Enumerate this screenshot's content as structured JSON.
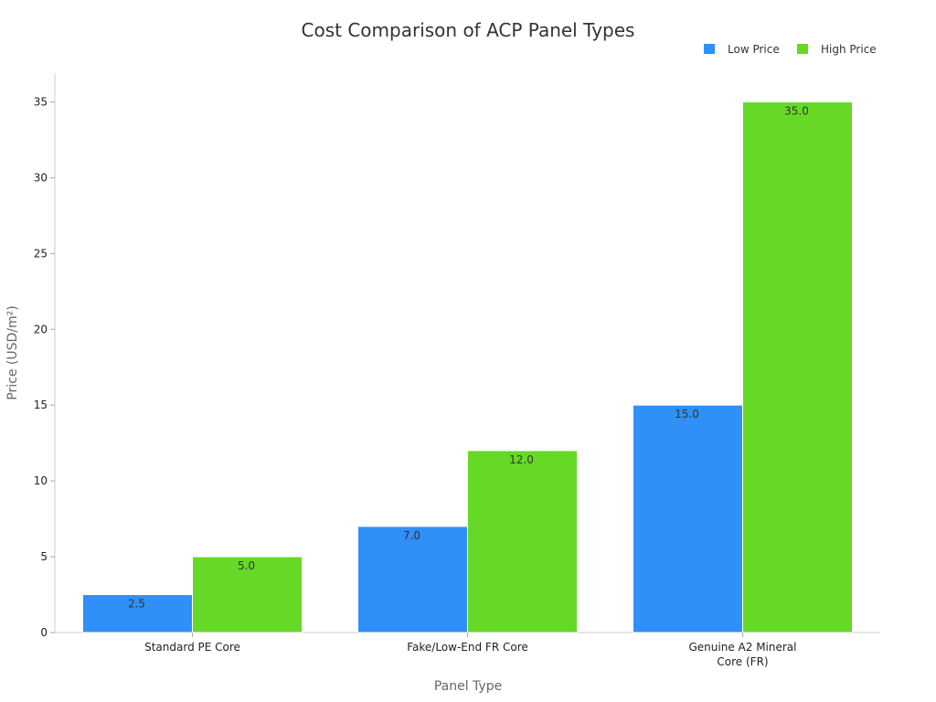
{
  "chart_data": {
    "type": "bar",
    "title": "Cost Comparison of ACP Panel Types",
    "xlabel": "Panel Type",
    "ylabel": "Price (USD/m²)",
    "categories": [
      [
        "Standard PE Core"
      ],
      [
        "Fake/Low-End FR Core"
      ],
      [
        "Genuine A2 Mineral",
        "Core (FR)"
      ]
    ],
    "series": [
      {
        "name": "Low Price",
        "color": "#2f90f7",
        "values": [
          2.5,
          7.0,
          15.0
        ],
        "labels": [
          "2.5",
          "7.0",
          "15.0"
        ]
      },
      {
        "name": "High Price",
        "color": "#66d926",
        "values": [
          5.0,
          12.0,
          35.0
        ],
        "labels": [
          "5.0",
          "12.0",
          "35.0"
        ]
      }
    ],
    "ylim": [
      0,
      36.9
    ],
    "yticks": [
      0,
      5,
      10,
      15,
      20,
      25,
      30,
      35
    ],
    "ytick_labels": [
      "0",
      "5",
      "10",
      "15",
      "20",
      "25",
      "30",
      "35"
    ],
    "grid": false,
    "legend_position": "top-right"
  }
}
